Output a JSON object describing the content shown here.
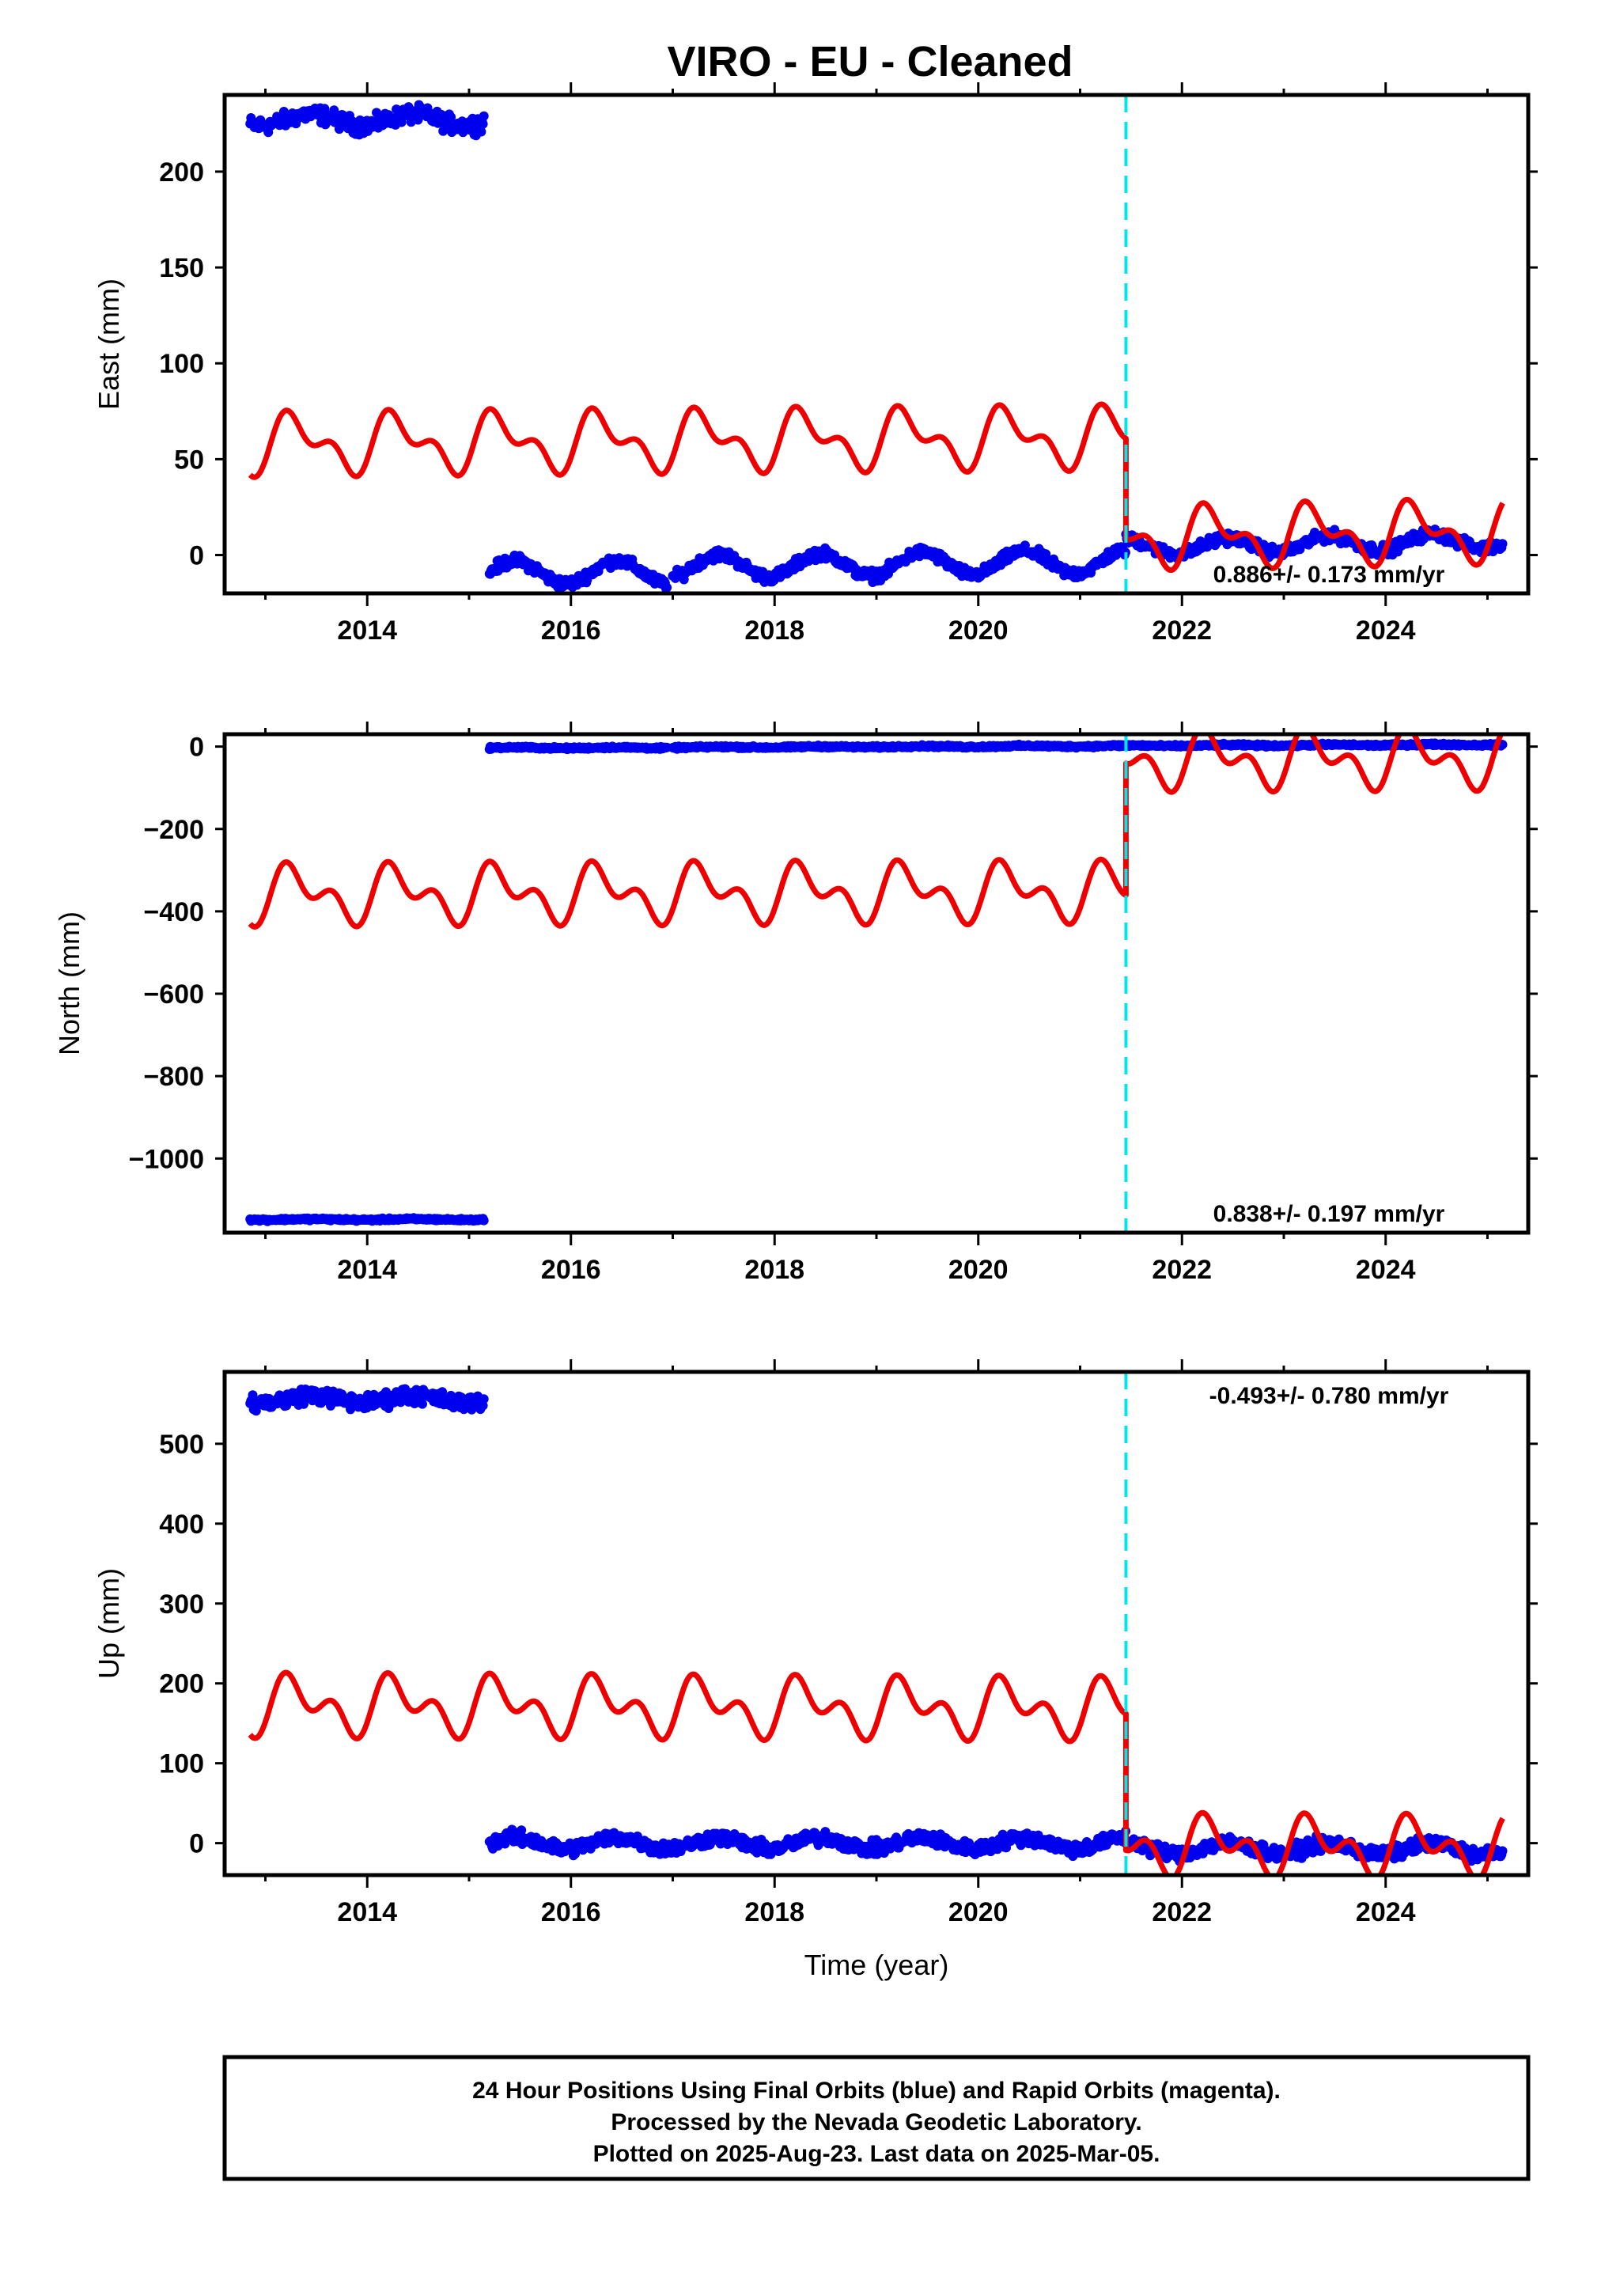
{
  "title": "VIRO  - EU - Cleaned",
  "x_axis": {
    "label": "Time (year)",
    "range": [
      2012.6,
      2025.4
    ],
    "ticks": [
      2014,
      2016,
      2018,
      2020,
      2022,
      2024
    ],
    "tick_labels": [
      "2014",
      "2016",
      "2018",
      "2020",
      "2022",
      "2024"
    ]
  },
  "footer": {
    "line1": "24 Hour Positions Using Final Orbits (blue) and Rapid Orbits (magenta).",
    "line2": "Processed by the Nevada Geodetic Laboratory.",
    "line3": "Plotted on 2025-Aug-23. Last data on 2025-Mar-05."
  },
  "colors": {
    "data_points": "#0000ee",
    "model_fit": "#ee0000",
    "equipment_change": "#00e5ee",
    "frame": "#000000"
  },
  "chart_data": [
    {
      "type": "scatter",
      "name": "east",
      "ylabel": "East (mm)",
      "ylim": [
        -20,
        240
      ],
      "yticks": [
        0,
        50,
        100,
        150,
        200
      ],
      "ytick_labels": [
        "0",
        "50",
        "100",
        "150",
        "200"
      ],
      "rate_text": "0.886+/- 0.173 mm/yr",
      "rate_position": "bottom-right",
      "equipment_change_year": 2021.45,
      "data_segments": [
        {
          "start": 2012.85,
          "end": 2015.15,
          "level": 227,
          "seasonal_amp": 3,
          "noise": 3
        },
        {
          "start": 2015.2,
          "end": 2016.95,
          "level": -9,
          "seasonal_amp": 6,
          "noise": 2
        },
        {
          "start": 2017.0,
          "end": 2021.45,
          "level": -6,
          "seasonal_amp": 6,
          "noise": 2,
          "trend": 0.6
        },
        {
          "start": 2021.45,
          "end": 2025.15,
          "level": 4,
          "seasonal_amp": 4,
          "noise": 2,
          "trend": 1.0
        }
      ],
      "model_segments": [
        {
          "start": 2012.85,
          "end": 2021.45,
          "offset": 60,
          "trend": 0.4,
          "annual_amp": 12,
          "semiannual_amp": 8
        },
        {
          "start": 2021.45,
          "end": 2025.15,
          "offset": 6,
          "trend": 0.9,
          "annual_amp": 12,
          "semiannual_amp": 8
        }
      ]
    },
    {
      "type": "scatter",
      "name": "north",
      "ylabel": "North (mm)",
      "ylim": [
        -1180,
        30
      ],
      "yticks": [
        0,
        -200,
        -400,
        -600,
        -800,
        -1000
      ],
      "ytick_labels": [
        "0",
        "−200",
        "−400",
        "−600",
        "−800",
        "−1000"
      ],
      "rate_text": "0.838+/- 0.197 mm/yr",
      "rate_position": "bottom-right",
      "equipment_change_year": 2021.45,
      "data_segments": [
        {
          "start": 2012.85,
          "end": 2015.15,
          "level": -1148,
          "seasonal_amp": 1,
          "noise": 2
        },
        {
          "start": 2015.2,
          "end": 2016.95,
          "level": -3,
          "seasonal_amp": 1,
          "noise": 2
        },
        {
          "start": 2017.0,
          "end": 2021.45,
          "level": -2,
          "seasonal_amp": 1,
          "noise": 2,
          "trend": 0.8
        },
        {
          "start": 2021.45,
          "end": 2025.15,
          "level": 2,
          "seasonal_amp": 1,
          "noise": 2,
          "trend": 0.8
        }
      ],
      "model_segments": [
        {
          "start": 2012.85,
          "end": 2021.45,
          "offset": -355,
          "trend": 0.8,
          "annual_amp": 50,
          "semiannual_amp": 40
        },
        {
          "start": 2021.45,
          "end": 2025.15,
          "offset": -35,
          "trend": 0.8,
          "annual_amp": 50,
          "semiannual_amp": 40
        }
      ]
    },
    {
      "type": "scatter",
      "name": "up",
      "ylabel": "Up (mm)",
      "ylim": [
        -40,
        590
      ],
      "yticks": [
        0,
        100,
        200,
        300,
        400,
        500
      ],
      "ytick_labels": [
        "0",
        "100",
        "200",
        "300",
        "400",
        "500"
      ],
      "rate_text": "-0.493+/- 0.780 mm/yr",
      "rate_position": "top-right",
      "equipment_change_year": 2021.45,
      "data_segments": [
        {
          "start": 2012.85,
          "end": 2015.15,
          "level": 556,
          "seasonal_amp": 5,
          "noise": 7
        },
        {
          "start": 2015.2,
          "end": 2021.45,
          "level": 0,
          "seasonal_amp": 7,
          "noise": 6
        },
        {
          "start": 2021.45,
          "end": 2025.15,
          "level": -6,
          "seasonal_amp": 7,
          "noise": 6,
          "trend": -0.5
        }
      ],
      "model_segments": [
        {
          "start": 2012.85,
          "end": 2021.45,
          "offset": 170,
          "trend": -0.5,
          "annual_amp": 25,
          "semiannual_amp": 22
        },
        {
          "start": 2021.45,
          "end": 2025.15,
          "offset": -1,
          "trend": -0.5,
          "annual_amp": 25,
          "semiannual_amp": 22
        }
      ]
    }
  ]
}
